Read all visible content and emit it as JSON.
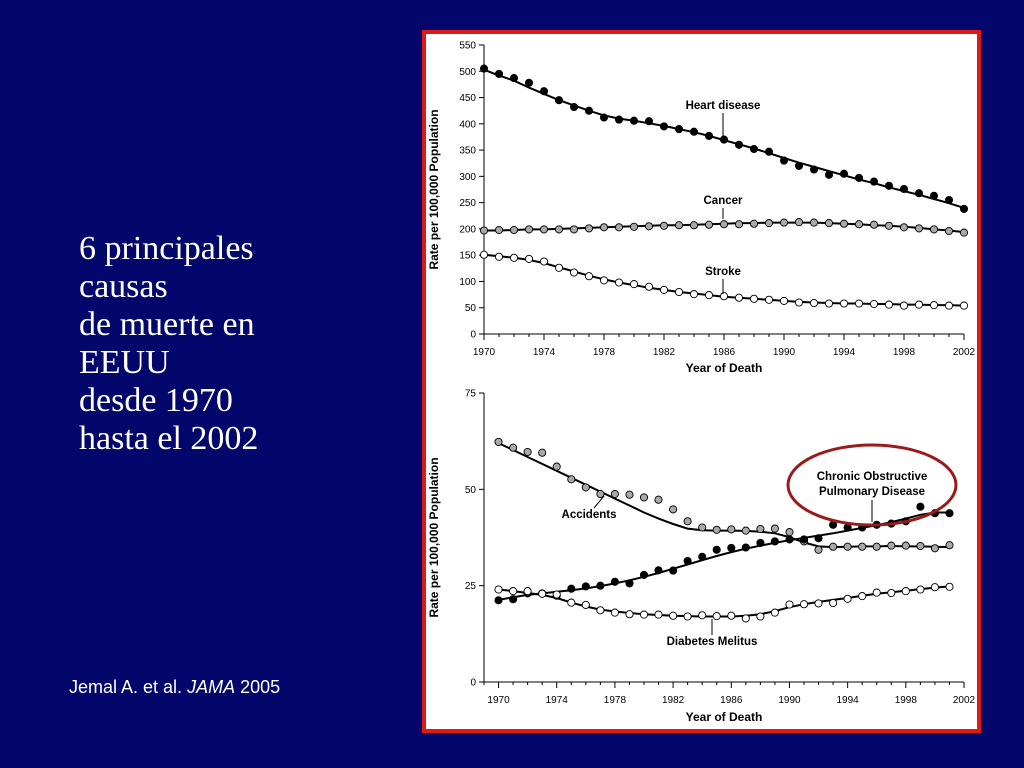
{
  "slide": {
    "title_lines": [
      "6 principales",
      "causas",
      "de muerte en",
      "EEUU",
      "desde 1970",
      "hasta el 2002"
    ],
    "citation": {
      "authors": "Jemal A. et al.",
      "journal": "JAMA",
      "year": "2005"
    }
  },
  "colors": {
    "background": "#03066a",
    "frame_border": "#e01818",
    "highlight_ellipse": "#9b1b1b",
    "black_marker": "#000000",
    "gray_marker": "#a9a9a9",
    "white_marker": "#ffffff"
  },
  "chart_data": [
    {
      "type": "line",
      "title": "",
      "xlabel": "Year of Death",
      "ylabel": "Rate per 100,000 Population",
      "xlim": [
        1970,
        2002
      ],
      "ylim": [
        0,
        550
      ],
      "xticks": [
        1970,
        1974,
        1978,
        1982,
        1986,
        1990,
        1994,
        1998,
        2002
      ],
      "yticks": [
        0,
        50,
        100,
        150,
        200,
        250,
        300,
        350,
        400,
        450,
        500,
        550
      ],
      "x": [
        1970,
        1971,
        1972,
        1973,
        1974,
        1975,
        1976,
        1977,
        1978,
        1979,
        1980,
        1981,
        1982,
        1983,
        1984,
        1985,
        1986,
        1987,
        1988,
        1989,
        1990,
        1991,
        1992,
        1993,
        1994,
        1995,
        1996,
        1997,
        1998,
        1999,
        2000,
        2001,
        2002
      ],
      "series": [
        {
          "name": "Heart disease",
          "marker": "black",
          "values": [
            505,
            495,
            487,
            478,
            462,
            445,
            432,
            425,
            412,
            408,
            406,
            405,
            395,
            390,
            385,
            377,
            370,
            360,
            352,
            347,
            330,
            320,
            313,
            303,
            305,
            297,
            290,
            282,
            276,
            268,
            263,
            255,
            238
          ],
          "trend": [
            503,
            492,
            482,
            469,
            457,
            445,
            435,
            425,
            416,
            410,
            406,
            401,
            396,
            390,
            384,
            377,
            369,
            361,
            353,
            344,
            335,
            326,
            318,
            310,
            302,
            294,
            287,
            279,
            272,
            265,
            257,
            249,
            240
          ]
        },
        {
          "name": "Cancer",
          "marker": "gray",
          "values": [
            197,
            198,
            198,
            199,
            199,
            199,
            199,
            201,
            203,
            203,
            204,
            205,
            206,
            207,
            207,
            208,
            209,
            209,
            210,
            211,
            212,
            213,
            212,
            211,
            210,
            209,
            208,
            206,
            203,
            201,
            199,
            196,
            193
          ],
          "trend": [
            197,
            197,
            198,
            199,
            199,
            200,
            201,
            202,
            203,
            204,
            205,
            206,
            207,
            207,
            208,
            209,
            210,
            211,
            211,
            212,
            212,
            212,
            212,
            211,
            210,
            209,
            207,
            206,
            204,
            202,
            199,
            197,
            194
          ]
        },
        {
          "name": "Stroke",
          "marker": "white",
          "values": [
            151,
            147,
            145,
            143,
            138,
            126,
            117,
            110,
            102,
            98,
            95,
            90,
            84,
            80,
            76,
            74,
            72,
            69,
            67,
            65,
            63,
            60,
            59,
            58,
            58,
            58,
            57,
            56,
            54,
            56,
            55,
            54,
            54
          ],
          "trend": [
            151,
            148,
            145,
            141,
            135,
            127,
            119,
            111,
            104,
            98,
            93,
            88,
            84,
            80,
            77,
            74,
            71,
            69,
            67,
            65,
            63,
            61,
            60,
            59,
            58,
            58,
            57,
            57,
            56,
            56,
            55,
            55,
            54
          ]
        }
      ],
      "annotations": [
        "Heart disease",
        "Cancer",
        "Stroke"
      ]
    },
    {
      "type": "line",
      "title": "",
      "xlabel": "Year of Death",
      "ylabel": "Rate per 100,000 Population",
      "xlim": [
        1969,
        2002
      ],
      "ylim": [
        0,
        75
      ],
      "xticks": [
        1970,
        1974,
        1978,
        1982,
        1986,
        1990,
        1994,
        1998,
        2002
      ],
      "yticks": [
        0,
        25,
        50,
        75
      ],
      "x": [
        1970,
        1971,
        1972,
        1973,
        1974,
        1975,
        1976,
        1977,
        1978,
        1979,
        1980,
        1981,
        1982,
        1983,
        1984,
        1985,
        1986,
        1987,
        1988,
        1989,
        1990,
        1991,
        1992,
        1993,
        1994,
        1995,
        1996,
        1997,
        1998,
        1999,
        2000,
        2001
      ],
      "series": [
        {
          "name": "Accidents",
          "marker": "gray",
          "values": [
            62.3,
            60.8,
            59.7,
            59.5,
            55.9,
            52.6,
            50.5,
            48.8,
            48.8,
            48.6,
            47.9,
            47.3,
            44.8,
            41.7,
            40.1,
            39.5,
            39.6,
            39.3,
            39.7,
            39.8,
            38.9,
            36.5,
            34.3,
            35.1,
            35.1,
            35.1,
            35.1,
            35.4,
            35.4,
            35.3,
            34.7,
            35.5
          ],
          "trend": [
            62,
            60.2,
            58.4,
            56.6,
            54.8,
            53,
            51.2,
            49.4,
            47.6,
            45.8,
            44,
            42.4,
            41,
            39.8,
            39.4,
            39.3,
            39.3,
            39.2,
            39,
            38.6,
            37.6,
            36.2,
            35.2,
            35,
            35.1,
            35.2,
            35.2,
            35.3,
            35.2,
            35.2,
            35.1,
            35
          ]
        },
        {
          "name": "Chronic Obstructive Pulmonary Disease",
          "marker": "black",
          "values": [
            21.2,
            21.5,
            23.0,
            23.0,
            22.4,
            24.2,
            24.8,
            25.0,
            26.0,
            25.6,
            27.8,
            29.0,
            28.9,
            31.4,
            32.5,
            34.3,
            34.8,
            34.9,
            36.1,
            36.5,
            37.0,
            37.0,
            37.3,
            40.8,
            40.1,
            40.1,
            40.8,
            41.1,
            41.7,
            45.5,
            43.8,
            43.8
          ],
          "trend": [
            21.3,
            22,
            22.6,
            23,
            23.4,
            23.8,
            24.3,
            24.9,
            25.6,
            26.4,
            27.3,
            28.3,
            29.4,
            30.5,
            31.6,
            32.7,
            33.7,
            34.6,
            35.4,
            36.1,
            36.8,
            37.4,
            38,
            38.6,
            39.3,
            40,
            40.7,
            41.5,
            42.4,
            43.4,
            44,
            44
          ]
        },
        {
          "name": "Diabetes Melitus",
          "marker": "white",
          "values": [
            24.0,
            23.6,
            23.6,
            22.9,
            22.7,
            20.6,
            20.0,
            18.6,
            18.0,
            17.6,
            17.5,
            17.5,
            17.2,
            17.0,
            17.3,
            17.1,
            17.2,
            16.5,
            17.0,
            18.0,
            20.1,
            20.2,
            20.4,
            20.5,
            21.6,
            22.3,
            23.2,
            23.1,
            23.6,
            24.0,
            24.6,
            24.7
          ],
          "trend": [
            24,
            23.6,
            23.1,
            22.6,
            21.8,
            20.6,
            19.6,
            18.8,
            18.3,
            17.9,
            17.6,
            17.4,
            17.2,
            17.1,
            17,
            17,
            17,
            17.2,
            17.6,
            18.4,
            19.4,
            20.2,
            20.8,
            21.3,
            21.8,
            22.4,
            22.9,
            23.3,
            23.7,
            24.1,
            24.5,
            24.8
          ]
        }
      ],
      "annotations": [
        "Accidents",
        "Chronic Obstructive",
        "Pulmonary Disease",
        "Diabetes Melitus"
      ]
    }
  ]
}
